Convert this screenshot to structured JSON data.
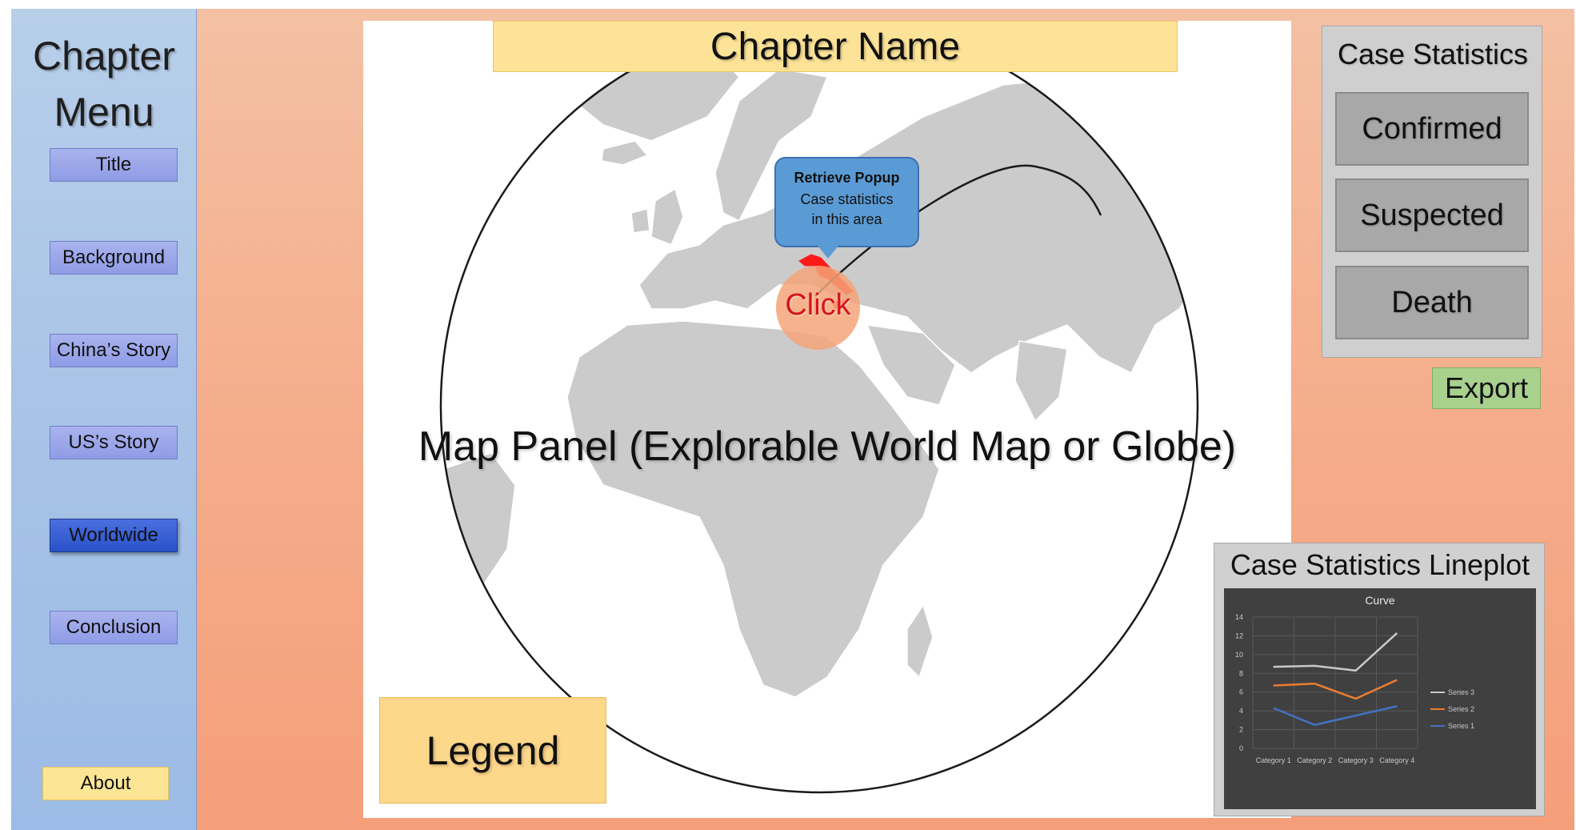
{
  "sidebar": {
    "title": "Chapter Menu",
    "items": [
      {
        "label": "Title"
      },
      {
        "label": "Background"
      },
      {
        "label": "China’s Story"
      },
      {
        "label": "US’s Story"
      },
      {
        "label": "Worldwide",
        "active": true
      },
      {
        "label": "Conclusion"
      }
    ],
    "about_label": "About"
  },
  "header": {
    "chapter_name": "Chapter Name"
  },
  "map": {
    "panel_label": "Map Panel (Explorable World Map or Globe)",
    "legend_label": "Legend",
    "popup": {
      "title": "Retrieve Popup",
      "line1": "Case statistics",
      "line2": "in this area"
    },
    "click_label": "Click",
    "highlight_color": "#ff1a1a"
  },
  "stats": {
    "title": "Case Statistics",
    "buttons": [
      {
        "label": "Confirmed"
      },
      {
        "label": "Suspected"
      },
      {
        "label": "Death"
      }
    ],
    "export_label": "Export"
  },
  "lineplot": {
    "panel_title": "Case Statistics Lineplot"
  },
  "chart_data": {
    "type": "line",
    "title": "Curve",
    "categories": [
      "Category 1",
      "Category 2",
      "Category 3",
      "Category 4"
    ],
    "ylim": [
      0,
      14
    ],
    "yticks": [
      0,
      2,
      4,
      6,
      8,
      10,
      12,
      14
    ],
    "grid": true,
    "legend_position": "right",
    "series": [
      {
        "name": "Series 3",
        "values": [
          8.7,
          8.8,
          8.3,
          12.3
        ],
        "color": "#c8c8c8"
      },
      {
        "name": "Series 2",
        "values": [
          6.7,
          6.9,
          5.3,
          7.3
        ],
        "color": "#ed7d31"
      },
      {
        "name": "Series 1",
        "values": [
          4.3,
          2.5,
          3.5,
          4.5
        ],
        "color": "#4472c4"
      }
    ]
  }
}
